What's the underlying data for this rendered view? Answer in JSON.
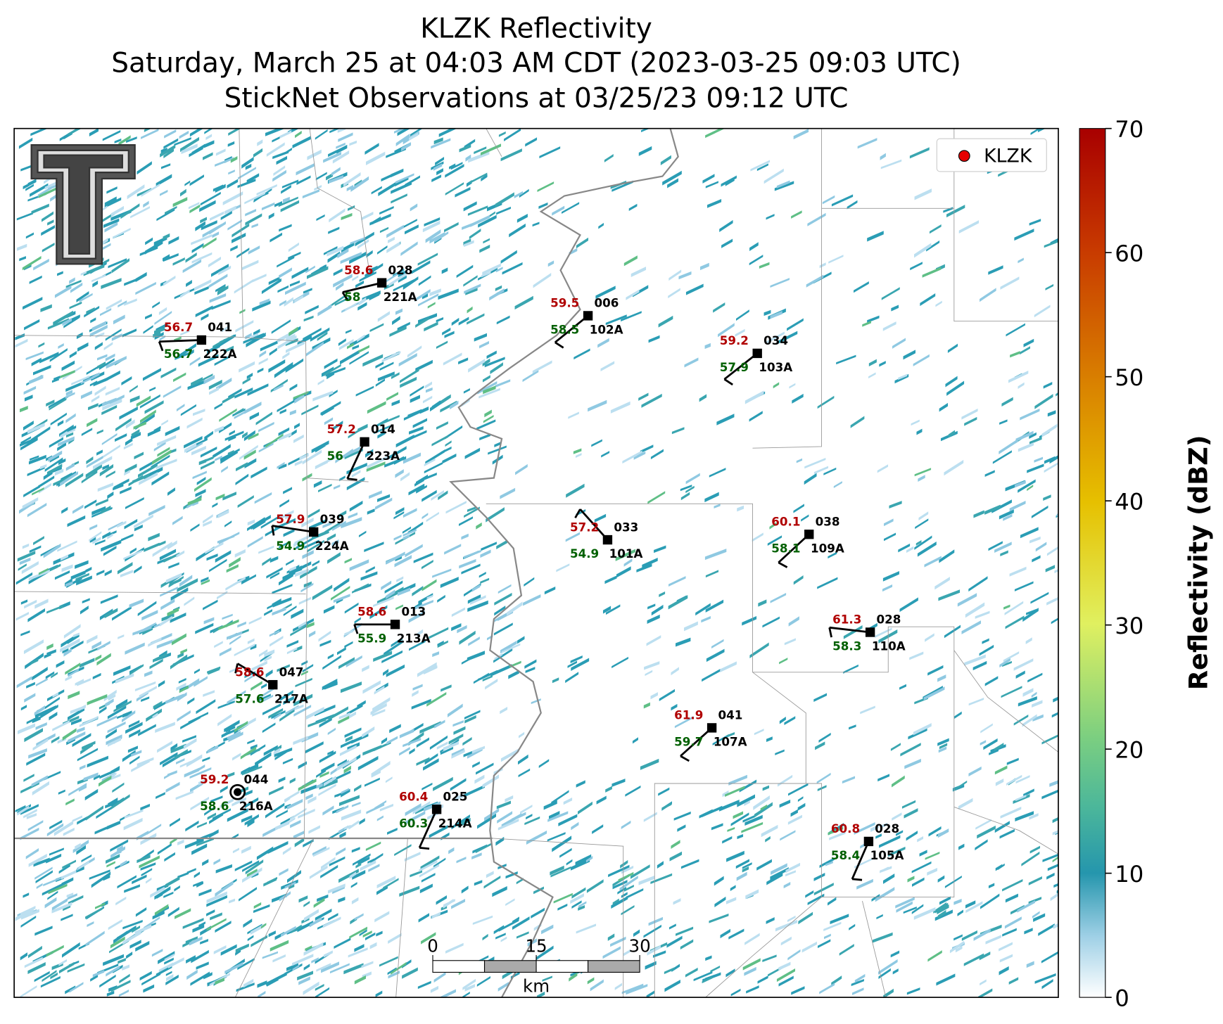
{
  "title": [
    "KLZK Reflectivity",
    "Saturday, March 25 at 04:03 AM CDT (2023-03-25 09:03 UTC)",
    "StickNet Observations at 03/25/23 09:12 UTC"
  ],
  "legend": "KLZK",
  "colorbar": {
    "label": "Reflectivity (dBZ)",
    "ylim": [
      0,
      70
    ],
    "yticks": [
      0,
      10,
      20,
      30,
      40,
      50,
      60,
      70
    ]
  },
  "scale_bar": {
    "ticks": [
      0,
      15,
      30
    ],
    "unit": "km"
  },
  "stations": [
    {
      "id": "221A",
      "temperature": 58.6,
      "dewpoint": 58.0,
      "code": "028"
    },
    {
      "id": "102A",
      "temperature": 59.5,
      "dewpoint": 58.5,
      "code": "006"
    },
    {
      "id": "222A",
      "temperature": 56.7,
      "dewpoint": 56.7,
      "code": "041"
    },
    {
      "id": "103A",
      "temperature": 59.2,
      "dewpoint": 57.9,
      "code": "034"
    },
    {
      "id": "223A",
      "temperature": 57.2,
      "dewpoint": 56.0,
      "code": "014"
    },
    {
      "id": "224A",
      "temperature": 57.9,
      "dewpoint": 54.9,
      "code": "039"
    },
    {
      "id": "101A",
      "temperature": 57.2,
      "dewpoint": 54.9,
      "code": "033"
    },
    {
      "id": "109A",
      "temperature": 60.1,
      "dewpoint": 58.1,
      "code": "038"
    },
    {
      "id": "213A",
      "temperature": 58.6,
      "dewpoint": 55.9,
      "code": "013"
    },
    {
      "id": "110A",
      "temperature": 61.3,
      "dewpoint": 58.3,
      "code": "028"
    },
    {
      "id": "217A",
      "temperature": 58.6,
      "dewpoint": 57.6,
      "code": "047"
    },
    {
      "id": "107A",
      "temperature": 61.9,
      "dewpoint": 59.7,
      "code": "041"
    },
    {
      "id": "216A",
      "temperature": 59.2,
      "dewpoint": 58.6,
      "code": "044"
    },
    {
      "id": "214A",
      "temperature": 60.4,
      "dewpoint": 60.3,
      "code": "025"
    },
    {
      "id": "105A",
      "temperature": 60.8,
      "dewpoint": 58.4,
      "code": "028"
    }
  ]
}
